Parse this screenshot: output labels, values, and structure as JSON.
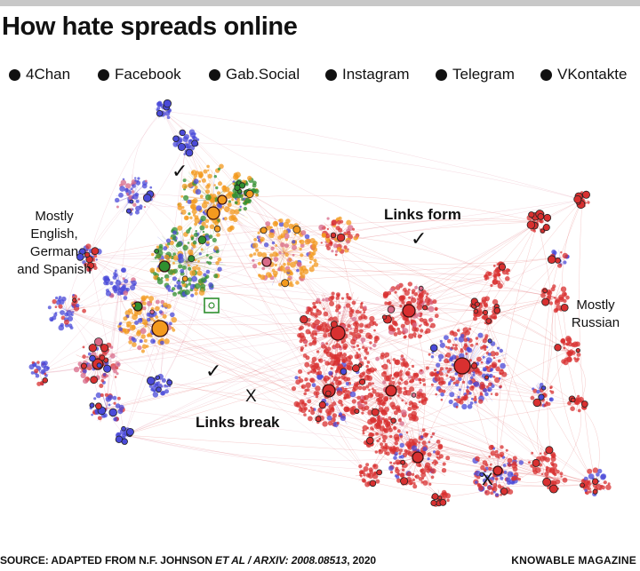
{
  "title": "How hate spreads online",
  "legend": [
    {
      "label": "4Chan",
      "color": "#e8c020"
    },
    {
      "label": "Facebook",
      "color": "#4a4ad8"
    },
    {
      "label": "Gab.Social",
      "color": "#2f8f2f"
    },
    {
      "label": "Instagram",
      "color": "#d86a88"
    },
    {
      "label": "Telegram",
      "color": "#f39a1e"
    },
    {
      "label": "VKontakte",
      "color": "#d83030"
    }
  ],
  "annotations": {
    "region_left": [
      "Mostly",
      "English,",
      "German",
      "and Spanish"
    ],
    "region_right": [
      "Mostly",
      "Russian"
    ],
    "links_form": "Links form",
    "links_break": "Links break",
    "check_mark": "✓",
    "x_mark": "X"
  },
  "footer": {
    "source_prefix": "SOURCE: ADAPTED FROM N.F. JOHNSON ",
    "source_italic": "ET AL / ARXIV: 2008.08513",
    "source_suffix": ", 2020",
    "credit": "KNOWABLE MAGAZINE"
  }
}
